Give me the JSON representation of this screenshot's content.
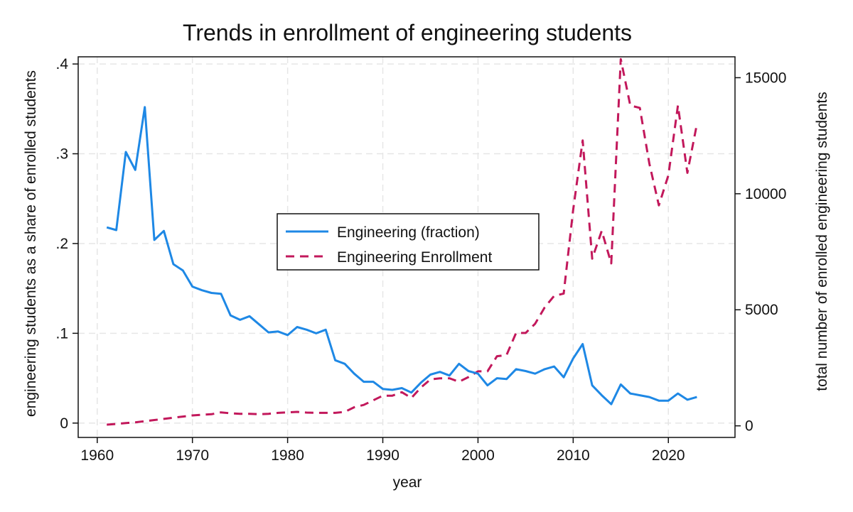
{
  "chart_data": {
    "type": "line",
    "title": "Trends in enrollment of engineering students",
    "xlabel": "year",
    "ylabel_left": "engineering students as a share of enrolled students",
    "ylabel_right": "total number of enrolled engineering students",
    "xlim": [
      1958,
      2027
    ],
    "ylim_left": [
      -0.016,
      0.408
    ],
    "ylim_right": [
      -500,
      15900
    ],
    "x_ticks": [
      1960,
      1970,
      1980,
      1990,
      2000,
      2010,
      2020
    ],
    "x_tick_labels": [
      "1960",
      "1970",
      "1980",
      "1990",
      "2000",
      "2010",
      "2020"
    ],
    "y_left_ticks": [
      0,
      0.1,
      0.2,
      0.3,
      0.4
    ],
    "y_left_tick_labels": [
      "0",
      ".1",
      ".2",
      ".3",
      ".4"
    ],
    "y_right_ticks": [
      0,
      5000,
      10000,
      15000
    ],
    "y_right_tick_labels": [
      "0",
      "5000",
      "10000",
      "15000"
    ],
    "grid": true,
    "legend_position": "center",
    "colors": {
      "fraction": "#1e88e5",
      "enrollment": "#c2185b"
    },
    "series": [
      {
        "name": "Engineering (fraction)",
        "axis": "left",
        "style": "solid",
        "x": [
          1961,
          1962,
          1963,
          1964,
          1965,
          1966,
          1967,
          1968,
          1969,
          1970,
          1971,
          1972,
          1973,
          1974,
          1975,
          1976,
          1977,
          1978,
          1979,
          1980,
          1981,
          1982,
          1983,
          1984,
          1985,
          1986,
          1987,
          1988,
          1989,
          1990,
          1991,
          1992,
          1993,
          1994,
          1995,
          1996,
          1997,
          1998,
          1999,
          2000,
          2001,
          2002,
          2003,
          2004,
          2005,
          2006,
          2007,
          2008,
          2009,
          2010,
          2011,
          2012,
          2013,
          2014,
          2015,
          2016,
          2017,
          2018,
          2019,
          2020,
          2021,
          2022,
          2023
        ],
        "values": [
          0.218,
          0.215,
          0.302,
          0.282,
          0.352,
          0.204,
          0.214,
          0.177,
          0.17,
          0.152,
          0.148,
          0.145,
          0.144,
          0.12,
          0.115,
          0.119,
          0.11,
          0.101,
          0.102,
          0.098,
          0.107,
          0.104,
          0.1,
          0.104,
          0.07,
          0.066,
          0.055,
          0.046,
          0.046,
          0.038,
          0.037,
          0.039,
          0.034,
          0.045,
          0.054,
          0.057,
          0.053,
          0.066,
          0.058,
          0.055,
          0.042,
          0.05,
          0.049,
          0.06,
          0.058,
          0.055,
          0.06,
          0.063,
          0.051,
          0.072,
          0.088,
          0.042,
          0.031,
          0.021,
          0.043,
          0.033,
          0.031,
          0.029,
          0.025,
          0.025,
          0.033,
          0.026,
          0.029
        ]
      },
      {
        "name": "Engineering Enrollment",
        "axis": "right",
        "style": "dashed",
        "x": [
          1961,
          1962,
          1963,
          1964,
          1965,
          1966,
          1967,
          1968,
          1969,
          1970,
          1971,
          1972,
          1973,
          1974,
          1975,
          1976,
          1977,
          1978,
          1979,
          1980,
          1981,
          1982,
          1983,
          1984,
          1985,
          1986,
          1987,
          1988,
          1989,
          1990,
          1991,
          1992,
          1993,
          1994,
          1995,
          1996,
          1997,
          1998,
          1999,
          2000,
          2001,
          2002,
          2003,
          2004,
          2005,
          2006,
          2007,
          2008,
          2009,
          2010,
          2011,
          2012,
          2013,
          2014,
          2015,
          2016,
          2017,
          2018,
          2019,
          2020,
          2021,
          2022,
          2023
        ],
        "values": [
          50,
          80,
          120,
          150,
          200,
          250,
          300,
          350,
          400,
          450,
          480,
          500,
          580,
          540,
          520,
          520,
          500,
          520,
          560,
          580,
          600,
          570,
          560,
          560,
          560,
          600,
          800,
          900,
          1100,
          1300,
          1300,
          1450,
          1200,
          1650,
          2000,
          2050,
          2050,
          1900,
          2100,
          2350,
          2350,
          3000,
          3050,
          4000,
          4000,
          4400,
          5100,
          5600,
          5700,
          9300,
          12300,
          7200,
          8400,
          7000,
          15800,
          13800,
          13700,
          11300,
          9500,
          10800,
          13800,
          10900,
          13000
        ]
      }
    ]
  }
}
